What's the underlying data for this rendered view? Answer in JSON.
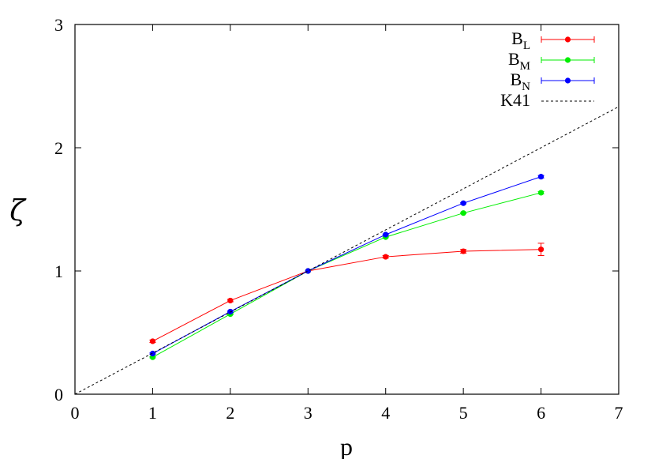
{
  "chart_data": {
    "type": "line",
    "title": "",
    "xlabel": "p",
    "ylabel": "ζ",
    "xlim": [
      0,
      7
    ],
    "ylim": [
      0,
      3
    ],
    "xticks": [
      "0",
      "1",
      "2",
      "3",
      "4",
      "5",
      "6",
      "7"
    ],
    "yticks": [
      "0",
      "1",
      "2",
      "3"
    ],
    "grid": false,
    "legend_position": "top-right",
    "series": [
      {
        "name": "B",
        "subscript": "L",
        "color": "#ff0000",
        "x": [
          1,
          2,
          3,
          4,
          5,
          6
        ],
        "y": [
          0.43,
          0.76,
          1.0,
          1.115,
          1.16,
          1.175
        ],
        "yerr": [
          0.01,
          0.01,
          0.0,
          0.01,
          0.015,
          0.05
        ]
      },
      {
        "name": "B",
        "subscript": "M",
        "color": "#00ee00",
        "x": [
          1,
          2,
          3,
          4,
          5,
          6
        ],
        "y": [
          0.3,
          0.65,
          1.0,
          1.275,
          1.47,
          1.635
        ],
        "yerr": [
          0.005,
          0.005,
          0.0,
          0.005,
          0.005,
          0.01
        ]
      },
      {
        "name": "B",
        "subscript": "N",
        "color": "#0000ff",
        "x": [
          1,
          2,
          3,
          4,
          5,
          6
        ],
        "y": [
          0.33,
          0.67,
          1.0,
          1.295,
          1.55,
          1.765
        ],
        "yerr": [
          0.005,
          0.005,
          0.0,
          0.005,
          0.005,
          0.01
        ]
      },
      {
        "name": "K41",
        "color": "#000000",
        "style": "dotted",
        "line": {
          "slope": 0.3333333,
          "intercept": 0
        }
      }
    ]
  }
}
